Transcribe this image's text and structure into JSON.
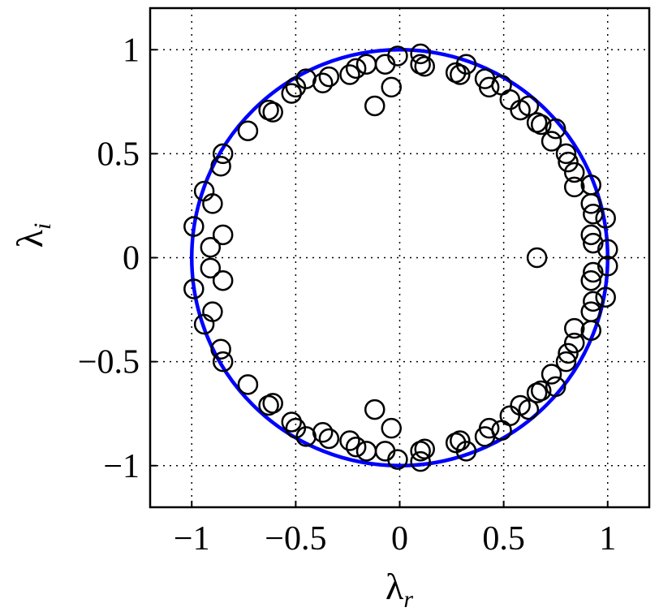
{
  "chart_data": {
    "type": "scatter",
    "xlabel": {
      "symbol": "λ",
      "subscript": "r"
    },
    "ylabel": {
      "symbol": "λ",
      "subscript": "i"
    },
    "xlim": [
      -1.2,
      1.2
    ],
    "ylim": [
      -1.2,
      1.2
    ],
    "xticks": [
      {
        "value": -1,
        "label": "−1"
      },
      {
        "value": -0.5,
        "label": "−0.5"
      },
      0,
      0.5,
      1
    ],
    "yticks": [
      {
        "value": -1,
        "label": "−1"
      },
      {
        "value": -0.5,
        "label": "−0.5"
      },
      0,
      0.5,
      1
    ],
    "grid": true,
    "reference_circle": {
      "radius": 1,
      "color": "#0000ff"
    },
    "series": [
      {
        "color": "#000000",
        "x": [
          -0.01,
          0.1,
          0.1,
          0.12,
          -0.04,
          -0.12,
          -0.07,
          -0.16,
          -0.21,
          -0.24,
          -0.34,
          -0.37,
          -0.45,
          -0.5,
          -0.52,
          -0.63,
          -0.61,
          -0.73,
          -0.85,
          -0.86,
          -0.94,
          -0.9,
          -0.85,
          -0.91,
          -0.99,
          0.27,
          0.29,
          0.32,
          0.41,
          0.43,
          0.49,
          0.53,
          0.58,
          0.62,
          0.66,
          0.68,
          0.75,
          0.73,
          0.8,
          0.81,
          0.84,
          0.84,
          0.92,
          0.92,
          0.93,
          0.99,
          0.92,
          0.93,
          1.0,
          -0.01,
          0.1,
          0.1,
          0.12,
          -0.04,
          -0.12,
          -0.07,
          -0.16,
          -0.21,
          -0.24,
          -0.34,
          -0.37,
          -0.45,
          -0.5,
          -0.52,
          -0.63,
          -0.61,
          -0.73,
          -0.85,
          -0.86,
          -0.94,
          -0.9,
          -0.85,
          -0.91,
          -0.99,
          0.27,
          0.29,
          0.32,
          0.41,
          0.43,
          0.49,
          0.53,
          0.58,
          0.62,
          0.66,
          0.68,
          0.75,
          0.73,
          0.8,
          0.81,
          0.84,
          0.84,
          0.92,
          0.92,
          0.93,
          0.99,
          0.92,
          0.93,
          1.0,
          0.66
        ],
        "y": [
          0.97,
          0.98,
          0.93,
          0.92,
          0.82,
          0.73,
          0.93,
          0.93,
          0.91,
          0.88,
          0.87,
          0.84,
          0.86,
          0.82,
          0.79,
          0.71,
          0.7,
          0.61,
          0.5,
          0.44,
          0.32,
          0.26,
          0.11,
          0.05,
          0.15,
          0.89,
          0.88,
          0.93,
          0.86,
          0.82,
          0.83,
          0.76,
          0.71,
          0.73,
          0.65,
          0.64,
          0.62,
          0.56,
          0.5,
          0.46,
          0.41,
          0.34,
          0.35,
          0.26,
          0.21,
          0.19,
          0.11,
          0.07,
          0.04,
          -0.97,
          -0.98,
          -0.93,
          -0.92,
          -0.82,
          -0.73,
          -0.93,
          -0.93,
          -0.91,
          -0.88,
          -0.87,
          -0.84,
          -0.86,
          -0.82,
          -0.79,
          -0.71,
          -0.7,
          -0.61,
          -0.5,
          -0.44,
          -0.32,
          -0.26,
          -0.11,
          -0.05,
          -0.15,
          -0.89,
          -0.88,
          -0.93,
          -0.86,
          -0.82,
          -0.83,
          -0.76,
          -0.71,
          -0.73,
          -0.65,
          -0.64,
          -0.62,
          -0.56,
          -0.5,
          -0.46,
          -0.41,
          -0.34,
          -0.35,
          -0.26,
          -0.21,
          -0.19,
          -0.11,
          -0.07,
          -0.04,
          0
        ]
      }
    ]
  }
}
